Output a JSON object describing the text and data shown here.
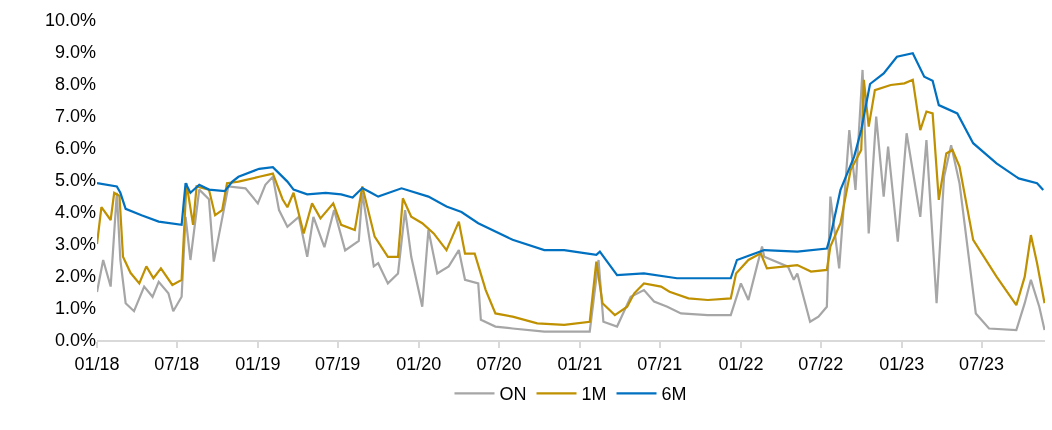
{
  "chart_data": {
    "type": "line",
    "xlim": [
      "2018-01-01",
      "2023-11-22"
    ],
    "xticks": [
      {
        "value": "2018-01-01",
        "label": "01/18"
      },
      {
        "value": "2018-07-01",
        "label": "07/18"
      },
      {
        "value": "2019-01-01",
        "label": "01/19"
      },
      {
        "value": "2019-07-01",
        "label": "07/19"
      },
      {
        "value": "2020-01-01",
        "label": "01/20"
      },
      {
        "value": "2020-07-01",
        "label": "07/20"
      },
      {
        "value": "2021-01-01",
        "label": "01/21"
      },
      {
        "value": "2021-07-01",
        "label": "07/21"
      },
      {
        "value": "2022-01-01",
        "label": "01/22"
      },
      {
        "value": "2022-07-01",
        "label": "07/22"
      },
      {
        "value": "2023-01-01",
        "label": "01/23"
      },
      {
        "value": "2023-07-01",
        "label": "07/23"
      }
    ],
    "ylim": [
      0,
      10
    ],
    "yticks": [
      {
        "value": 0,
        "label": "0.0%"
      },
      {
        "value": 1,
        "label": "1.0%"
      },
      {
        "value": 2,
        "label": "2.0%"
      },
      {
        "value": 3,
        "label": "3.0%"
      },
      {
        "value": 4,
        "label": "4.0%"
      },
      {
        "value": 5,
        "label": "5.0%"
      },
      {
        "value": 6,
        "label": "6.0%"
      },
      {
        "value": 7,
        "label": "7.0%"
      },
      {
        "value": 8,
        "label": "8.0%"
      },
      {
        "value": 9,
        "label": "9.0%"
      },
      {
        "value": 10,
        "label": "10.0%"
      }
    ],
    "legend": "bottom",
    "marker": "none",
    "line_style": "solid",
    "series": [
      {
        "name": "ON",
        "color": "#a6a6a6",
        "x": [
          "2018-01-01",
          "2018-01-15",
          "2018-02-01",
          "2018-02-15",
          "2018-02-23",
          "2018-03-07",
          "2018-03-26",
          "2018-04-18",
          "2018-05-07",
          "2018-05-21",
          "2018-06-12",
          "2018-06-23",
          "2018-07-12",
          "2018-07-21",
          "2018-08-01",
          "2018-08-21",
          "2018-09-12",
          "2018-09-23",
          "2018-10-04",
          "2018-10-26",
          "2018-12-04",
          "2019-01-01",
          "2019-01-18",
          "2019-02-04",
          "2019-02-18",
          "2019-03-09",
          "2019-04-04",
          "2019-04-23",
          "2019-05-07",
          "2019-06-01",
          "2019-06-23",
          "2019-07-18",
          "2019-08-18",
          "2019-08-26",
          "2019-09-21",
          "2019-10-01",
          "2019-10-23",
          "2019-11-15",
          "2019-12-01",
          "2019-12-15",
          "2020-01-09",
          "2020-01-23",
          "2020-02-12",
          "2020-03-09",
          "2020-04-01",
          "2020-04-15",
          "2020-05-15",
          "2020-05-21",
          "2020-06-23",
          "2020-08-01",
          "2020-10-12",
          "2021-01-23",
          "2021-02-12",
          "2021-02-23",
          "2021-03-26",
          "2021-04-26",
          "2021-05-26",
          "2021-06-18",
          "2021-07-18",
          "2021-08-18",
          "2021-10-18",
          "2021-12-09",
          "2022-01-01",
          "2022-01-18",
          "2022-02-07",
          "2022-02-18",
          "2022-02-23",
          "2022-04-18",
          "2022-05-01",
          "2022-05-09",
          "2022-06-07",
          "2022-06-26",
          "2022-07-15",
          "2022-07-23",
          "2022-08-12",
          "2022-09-04",
          "2022-09-18",
          "2022-10-04",
          "2022-10-18",
          "2022-11-04",
          "2022-11-21",
          "2022-12-01",
          "2022-12-23",
          "2023-01-12",
          "2023-02-12",
          "2023-02-26",
          "2023-03-21",
          "2023-04-07",
          "2023-04-23",
          "2023-05-12",
          "2023-06-18",
          "2023-07-18",
          "2023-09-18",
          "2023-10-07",
          "2023-10-21",
          "2023-11-09",
          "2023-11-21"
        ],
        "values": [
          1.5,
          2.5,
          1.67,
          4.6,
          2.5,
          1.15,
          0.9,
          1.67,
          1.35,
          1.82,
          1.46,
          0.9,
          1.35,
          3.85,
          2.5,
          4.7,
          4.4,
          2.45,
          3.23,
          4.8,
          4.74,
          4.27,
          4.85,
          5.1,
          4.06,
          3.54,
          3.85,
          2.6,
          3.85,
          2.9,
          4.06,
          2.8,
          3.1,
          4.6,
          2.3,
          2.4,
          1.77,
          2.08,
          4.06,
          2.6,
          1.04,
          3.44,
          2.08,
          2.3,
          2.81,
          1.88,
          1.77,
          0.63,
          0.42,
          0.36,
          0.26,
          0.26,
          2.5,
          0.57,
          0.42,
          1.35,
          1.56,
          1.2,
          1.04,
          0.83,
          0.78,
          0.78,
          1.77,
          1.25,
          2.34,
          2.92,
          2.6,
          2.29,
          1.88,
          2.08,
          0.57,
          0.73,
          1.04,
          4.48,
          2.24,
          6.56,
          4.69,
          8.44,
          3.33,
          6.98,
          4.48,
          6.04,
          3.07,
          6.46,
          3.85,
          6.25,
          1.15,
          5.1,
          6.09,
          4.9,
          0.83,
          0.36,
          0.31,
          1.15,
          1.88,
          1.04,
          0.31
        ]
      },
      {
        "name": "1M",
        "color": "#bf9000",
        "x": [
          "2018-01-01",
          "2018-01-11",
          "2018-02-01",
          "2018-02-09",
          "2018-02-21",
          "2018-03-01",
          "2018-03-18",
          "2018-04-07",
          "2018-04-23",
          "2018-05-09",
          "2018-05-26",
          "2018-06-21",
          "2018-07-12",
          "2018-07-23",
          "2018-08-07",
          "2018-08-15",
          "2018-09-12",
          "2018-09-26",
          "2018-10-12",
          "2018-10-23",
          "2018-11-18",
          "2019-01-04",
          "2019-02-04",
          "2019-02-26",
          "2019-03-09",
          "2019-03-23",
          "2019-04-15",
          "2019-05-04",
          "2019-05-23",
          "2019-06-21",
          "2019-07-09",
          "2019-08-09",
          "2019-08-26",
          "2019-09-23",
          "2019-10-23",
          "2019-11-15",
          "2019-11-26",
          "2019-12-15",
          "2020-01-09",
          "2020-02-04",
          "2020-03-04",
          "2020-04-01",
          "2020-04-15",
          "2020-05-07",
          "2020-06-01",
          "2020-06-23",
          "2020-08-01",
          "2020-09-26",
          "2020-11-26",
          "2021-01-23",
          "2021-02-07",
          "2021-02-21",
          "2021-03-21",
          "2021-04-18",
          "2021-05-04",
          "2021-05-26",
          "2021-07-04",
          "2021-07-23",
          "2021-09-04",
          "2021-10-18",
          "2021-12-09",
          "2021-12-21",
          "2022-01-18",
          "2022-02-15",
          "2022-03-01",
          "2022-05-09",
          "2022-06-09",
          "2022-07-15",
          "2022-07-23",
          "2022-08-15",
          "2022-09-07",
          "2022-10-01",
          "2022-10-07",
          "2022-10-18",
          "2022-11-01",
          "2022-12-07",
          "2023-01-07",
          "2023-01-26",
          "2023-02-12",
          "2023-02-26",
          "2023-03-12",
          "2023-03-26",
          "2023-04-12",
          "2023-04-26",
          "2023-05-12",
          "2023-06-12",
          "2023-08-04",
          "2023-09-18",
          "2023-10-07",
          "2023-10-21",
          "2023-11-04",
          "2023-11-21"
        ],
        "values": [
          3.0,
          4.15,
          3.75,
          4.6,
          4.5,
          2.6,
          2.1,
          1.77,
          2.3,
          1.93,
          2.24,
          1.72,
          1.88,
          4.9,
          3.6,
          4.8,
          4.7,
          3.9,
          4.06,
          4.9,
          4.95,
          5.1,
          5.2,
          4.4,
          4.15,
          4.6,
          3.33,
          4.27,
          3.8,
          4.27,
          3.6,
          3.44,
          4.8,
          3.23,
          2.6,
          2.6,
          4.43,
          3.85,
          3.65,
          3.33,
          2.81,
          3.7,
          2.7,
          2.7,
          1.56,
          0.83,
          0.73,
          0.52,
          0.47,
          0.57,
          2.45,
          1.15,
          0.78,
          1.04,
          1.46,
          1.77,
          1.67,
          1.51,
          1.3,
          1.25,
          1.3,
          2.08,
          2.5,
          2.71,
          2.24,
          2.34,
          2.14,
          2.19,
          2.92,
          3.65,
          5.31,
          5.94,
          8.13,
          6.67,
          7.81,
          7.97,
          8.02,
          8.13,
          6.56,
          7.14,
          7.08,
          4.38,
          5.83,
          5.94,
          5.42,
          3.13,
          1.98,
          1.09,
          1.98,
          3.28,
          2.4,
          1.15
        ]
      },
      {
        "name": "6M",
        "color": "#0070c0",
        "x": [
          "2018-01-01",
          "2018-02-15",
          "2018-02-23",
          "2018-03-07",
          "2018-04-12",
          "2018-05-21",
          "2018-07-12",
          "2018-07-21",
          "2018-08-01",
          "2018-08-21",
          "2018-09-12",
          "2018-10-18",
          "2018-11-04",
          "2018-11-18",
          "2019-01-04",
          "2019-02-04",
          "2019-03-09",
          "2019-03-23",
          "2019-04-23",
          "2019-06-04",
          "2019-07-09",
          "2019-08-04",
          "2019-08-26",
          "2019-09-15",
          "2019-10-01",
          "2019-11-23",
          "2020-01-23",
          "2020-03-04",
          "2020-04-07",
          "2020-05-15",
          "2020-08-01",
          "2020-10-12",
          "2020-11-26",
          "2021-02-07",
          "2021-02-15",
          "2021-03-26",
          "2021-05-26",
          "2021-08-09",
          "2021-10-18",
          "2021-12-09",
          "2021-12-23",
          "2022-02-23",
          "2022-05-09",
          "2022-07-15",
          "2022-07-23",
          "2022-08-15",
          "2022-09-15",
          "2022-10-01",
          "2022-10-21",
          "2022-11-21",
          "2022-12-21",
          "2023-01-26",
          "2023-02-21",
          "2023-03-12",
          "2023-03-26",
          "2023-05-07",
          "2023-06-12",
          "2023-08-04",
          "2023-09-23",
          "2023-11-04",
          "2023-11-18"
        ],
        "values": [
          4.9,
          4.8,
          4.6,
          4.1,
          3.9,
          3.7,
          3.6,
          4.9,
          4.6,
          4.85,
          4.7,
          4.65,
          4.95,
          5.1,
          5.35,
          5.4,
          4.95,
          4.7,
          4.55,
          4.6,
          4.55,
          4.45,
          4.75,
          4.6,
          4.48,
          4.74,
          4.48,
          4.17,
          4.0,
          3.65,
          3.13,
          2.81,
          2.81,
          2.66,
          2.76,
          2.03,
          2.08,
          1.93,
          1.93,
          1.93,
          2.5,
          2.81,
          2.76,
          2.86,
          3.23,
          4.69,
          5.73,
          6.56,
          8.0,
          8.33,
          8.85,
          8.96,
          8.23,
          8.1,
          7.34,
          7.08,
          6.15,
          5.52,
          5.05,
          4.9,
          4.69
        ]
      }
    ]
  }
}
